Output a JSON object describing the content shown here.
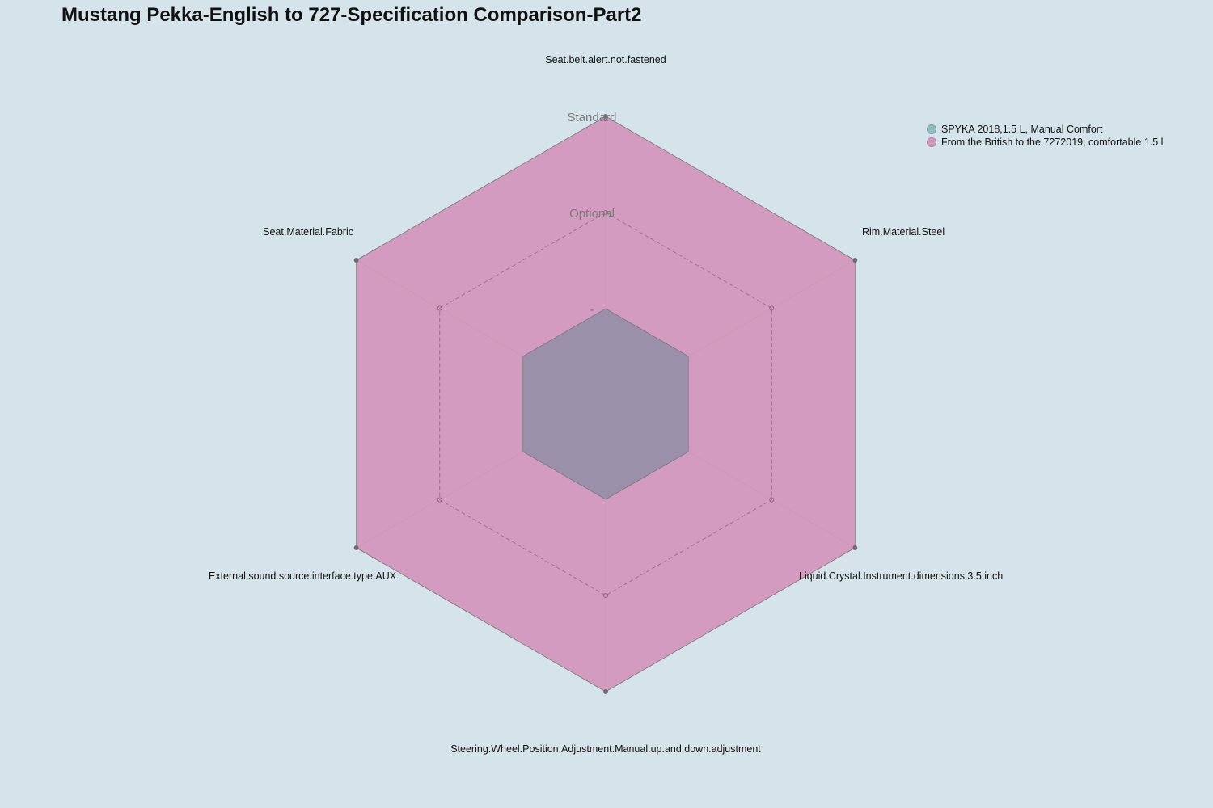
{
  "chart_data": {
    "type": "radar",
    "title": "Mustang Pekka-English to 727-Specification Comparison-Part2",
    "axes": [
      "Seat.belt.alert.not.fastened",
      "Rim.Material.Steel",
      "Liquid.Crystal.Instrument.dimensions.3.5.inch",
      "Steering.Wheel.Position.Adjustment.Manual.up.and.down.adjustment",
      "External.sound.source.interface.type.AUX",
      "Seat.Material.Fabric"
    ],
    "levels": [
      "-",
      "Optional",
      "Standard"
    ],
    "series": [
      {
        "name": "SPYKA 2018,1.5 L, Manual Comfort",
        "color": "#8fbfbf",
        "values": [
          "-",
          "-",
          "-",
          "-",
          "-",
          "-"
        ]
      },
      {
        "name": "From the British to the 7272019, comfortable 1.5 l",
        "color": "#d39bc0",
        "values": [
          "Standard",
          "Standard",
          "Standard",
          "Standard",
          "Standard",
          "Standard"
        ]
      }
    ],
    "legend_position": "top-right"
  }
}
